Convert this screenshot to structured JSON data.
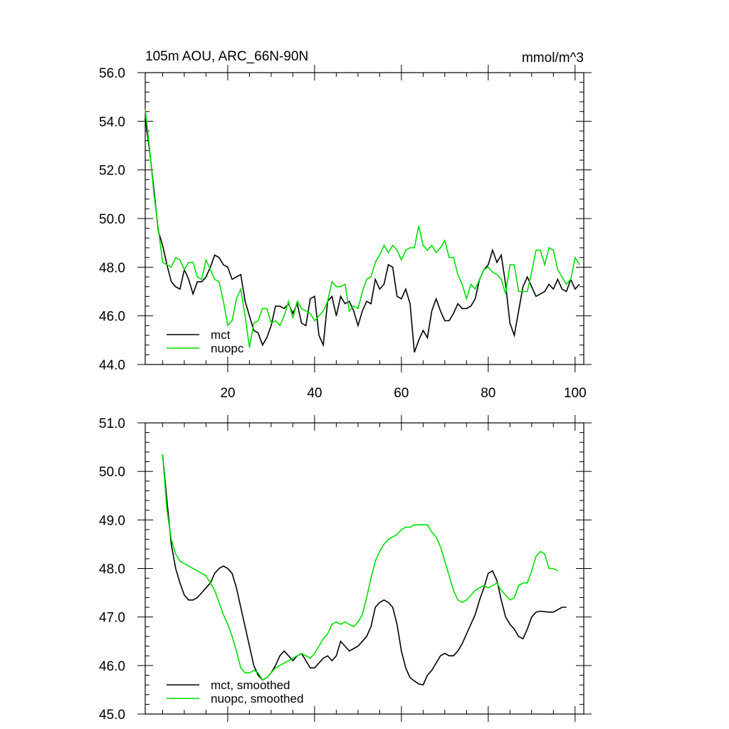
{
  "chart_data": [
    {
      "type": "line",
      "title": "105m AOU, ARC_66N-90N",
      "units": "mmol/m^3",
      "xlabel": "",
      "ylabel": "",
      "xlim": [
        1,
        102
      ],
      "ylim": [
        44.0,
        56.0
      ],
      "x_ticks": [
        20,
        40,
        60,
        80,
        100
      ],
      "y_ticks": [
        "44.0",
        "46.0",
        "48.0",
        "50.0",
        "52.0",
        "54.0",
        "56.0"
      ],
      "legend_position": "bottom-left",
      "series": [
        {
          "name": "mct",
          "color": "#000000",
          "x_start": 1,
          "values": [
            54.1,
            52.8,
            51.2,
            49.5,
            48.9,
            48.1,
            47.4,
            47.2,
            47.1,
            47.9,
            47.5,
            46.9,
            47.4,
            47.4,
            47.6,
            48.0,
            48.5,
            48.4,
            48.1,
            48.0,
            47.5,
            47.6,
            47.7,
            46.6,
            46.0,
            45.4,
            45.3,
            44.8,
            45.1,
            45.6,
            46.4,
            46.4,
            46.3,
            46.5,
            46.1,
            46.5,
            45.7,
            45.6,
            46.7,
            46.8,
            45.2,
            44.8,
            46.6,
            46.8,
            46.0,
            46.8,
            46.5,
            46.6,
            46.2,
            45.6,
            46.2,
            46.6,
            46.5,
            47.5,
            47.1,
            47.3,
            48.1,
            48.0,
            46.8,
            46.7,
            47.1,
            46.5,
            44.5,
            45.0,
            45.4,
            45.1,
            46.2,
            46.7,
            46.2,
            45.8,
            45.8,
            46.1,
            46.5,
            46.3,
            46.3,
            46.4,
            46.7,
            47.5,
            47.9,
            48.1,
            48.7,
            48.2,
            48.5,
            47.3,
            45.7,
            45.2,
            46.2,
            47.2,
            47.6,
            47.2,
            46.8,
            46.9,
            47.0,
            47.3,
            47.1,
            47.5,
            47.1,
            47.0,
            47.5,
            47.1,
            47.3
          ]
        },
        {
          "name": "nuopc",
          "color": "#00e000",
          "x_start": 1,
          "values": [
            54.5,
            52.9,
            51.0,
            49.6,
            48.2,
            48.1,
            48.0,
            48.4,
            48.3,
            47.9,
            48.2,
            48.2,
            47.6,
            47.5,
            48.3,
            47.9,
            47.5,
            47.4,
            46.6,
            45.6,
            45.8,
            46.7,
            47.1,
            46.0,
            44.7,
            45.7,
            45.8,
            46.3,
            46.3,
            45.7,
            45.8,
            45.6,
            46.0,
            46.6,
            45.9,
            46.6,
            46.3,
            46.2,
            46.1,
            45.8,
            46.0,
            46.2,
            46.6,
            47.4,
            47.2,
            47.2,
            47.3,
            46.2,
            46.4,
            46.3,
            47.0,
            47.5,
            47.6,
            48.2,
            48.5,
            48.9,
            48.6,
            48.9,
            48.7,
            48.3,
            48.7,
            48.8,
            48.8,
            49.7,
            48.9,
            48.7,
            48.9,
            48.6,
            48.8,
            49.1,
            48.4,
            48.4,
            47.7,
            47.3,
            46.7,
            47.3,
            47.1,
            47.5,
            47.9,
            48.0,
            47.8,
            47.7,
            47.5,
            46.9,
            48.1,
            48.1,
            47.0,
            47.0,
            47.0,
            47.8,
            48.7,
            48.7,
            48.1,
            48.8,
            48.7,
            47.9,
            47.6,
            47.3,
            47.5,
            48.4,
            48.1
          ]
        }
      ]
    },
    {
      "type": "line",
      "title": "",
      "xlabel": "",
      "ylabel": "",
      "xlim": [
        1,
        102
      ],
      "ylim": [
        45.0,
        51.0
      ],
      "x_ticks": [
        20,
        40,
        60,
        80,
        100
      ],
      "y_ticks": [
        "45.0",
        "46.0",
        "47.0",
        "48.0",
        "49.0",
        "50.0",
        "51.0"
      ],
      "legend_position": "bottom-left",
      "series": [
        {
          "name": "mct, smoothed",
          "color": "#000000",
          "x_start": 5,
          "values": [
            50.35,
            49.4,
            48.5,
            48.0,
            47.7,
            47.45,
            47.35,
            47.35,
            47.4,
            47.5,
            47.6,
            47.7,
            47.9,
            48.0,
            48.05,
            48.0,
            47.9,
            47.6,
            47.2,
            46.8,
            46.4,
            46.0,
            45.8,
            45.7,
            45.75,
            45.85,
            46.0,
            46.2,
            46.3,
            46.2,
            46.1,
            46.2,
            46.25,
            46.1,
            45.95,
            45.95,
            46.05,
            46.15,
            46.2,
            46.1,
            46.2,
            46.5,
            46.4,
            46.3,
            46.35,
            46.4,
            46.5,
            46.6,
            46.8,
            47.2,
            47.3,
            47.35,
            47.3,
            47.2,
            46.85,
            46.3,
            45.95,
            45.75,
            45.68,
            45.62,
            45.6,
            45.8,
            45.9,
            46.05,
            46.2,
            46.25,
            46.2,
            46.2,
            46.3,
            46.45,
            46.65,
            46.85,
            47.05,
            47.35,
            47.6,
            47.9,
            47.95,
            47.75,
            47.35,
            47.0,
            46.85,
            46.75,
            46.6,
            46.55,
            46.75,
            47.0,
            47.1,
            47.12,
            47.11,
            47.1,
            47.1,
            47.15,
            47.2,
            47.2
          ]
        },
        {
          "name": "nuopc, smoothed",
          "color": "#00e000",
          "x_start": 5,
          "values": [
            50.35,
            49.2,
            48.6,
            48.3,
            48.15,
            48.1,
            48.05,
            48.0,
            47.95,
            47.9,
            47.85,
            47.7,
            47.55,
            47.3,
            47.05,
            46.85,
            46.6,
            46.3,
            45.95,
            45.85,
            45.85,
            45.9,
            45.85,
            45.7,
            45.75,
            45.85,
            45.95,
            46.0,
            46.05,
            46.1,
            46.15,
            46.2,
            46.25,
            46.2,
            46.15,
            46.25,
            46.4,
            46.55,
            46.65,
            46.85,
            46.9,
            46.85,
            46.9,
            46.85,
            46.8,
            46.9,
            47.05,
            47.4,
            47.8,
            48.15,
            48.35,
            48.5,
            48.6,
            48.65,
            48.7,
            48.8,
            48.85,
            48.85,
            48.9,
            48.9,
            48.9,
            48.9,
            48.75,
            48.65,
            48.45,
            48.15,
            47.85,
            47.55,
            47.35,
            47.3,
            47.35,
            47.45,
            47.55,
            47.6,
            47.65,
            47.6,
            47.65,
            47.7,
            47.55,
            47.45,
            47.35,
            47.4,
            47.65,
            47.7,
            47.7,
            47.95,
            48.25,
            48.35,
            48.3,
            48.0,
            48.0,
            47.95
          ]
        }
      ]
    }
  ]
}
